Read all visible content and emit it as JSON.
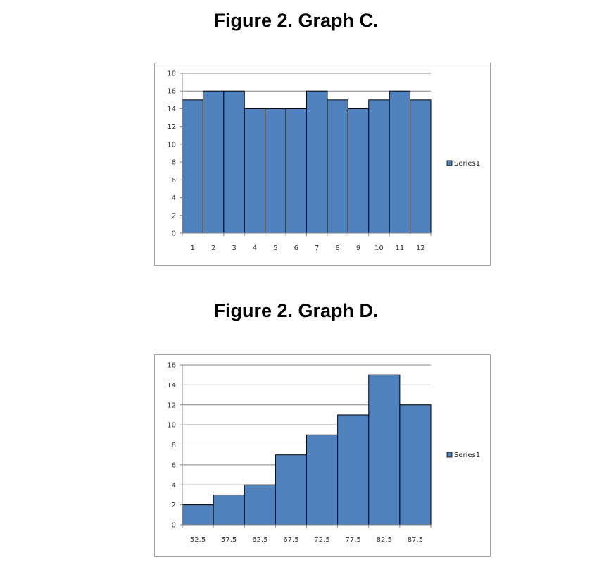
{
  "figures": [
    {
      "title": "Figure 2. Graph C."
    },
    {
      "title": "Figure 2. Graph D."
    }
  ],
  "chart_data": [
    {
      "type": "bar",
      "title": "Figure 2. Graph C.",
      "categories": [
        "1",
        "2",
        "3",
        "4",
        "5",
        "6",
        "7",
        "8",
        "9",
        "10",
        "11",
        "12"
      ],
      "series": [
        {
          "name": "Series1",
          "values": [
            15,
            16,
            16,
            14,
            14,
            14,
            16,
            15,
            14,
            15,
            16,
            15
          ]
        }
      ],
      "ylim": [
        0,
        18
      ],
      "yticks": [
        0,
        2,
        4,
        6,
        8,
        10,
        12,
        14,
        16,
        18
      ],
      "xlabel": "",
      "ylabel": "",
      "grid": true,
      "legend": "right",
      "bar_color": "#4f81bd"
    },
    {
      "type": "bar",
      "title": "Figure 2. Graph D.",
      "categories": [
        "52.5",
        "57.5",
        "62.5",
        "67.5",
        "72.5",
        "77.5",
        "82.5",
        "87.5"
      ],
      "series": [
        {
          "name": "Series1",
          "values": [
            2,
            3,
            4,
            7,
            9,
            11,
            15,
            12
          ]
        }
      ],
      "ylim": [
        0,
        16
      ],
      "yticks": [
        0,
        2,
        4,
        6,
        8,
        10,
        12,
        14,
        16
      ],
      "xlabel": "",
      "ylabel": "",
      "grid": true,
      "legend": "right",
      "bar_color": "#4f81bd"
    }
  ]
}
